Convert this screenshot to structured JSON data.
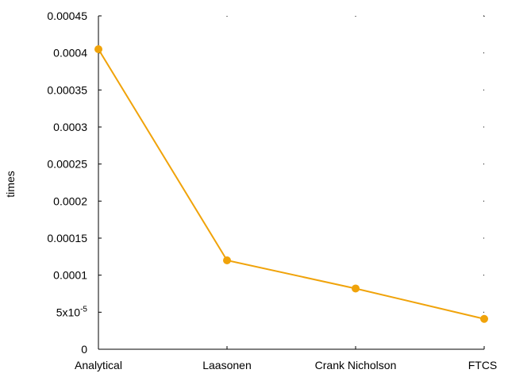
{
  "chart_data": {
    "type": "line",
    "title": "",
    "xlabel": "",
    "ylabel": "times",
    "categories": [
      "Analytical",
      "Laasonen",
      "Crank Nicholson",
      "FTCS"
    ],
    "series": [
      {
        "values": [
          0.000405,
          0.00012,
          8.2e-05,
          4.1e-05
        ],
        "color": "#f0a30a"
      }
    ],
    "ylim": [
      0,
      0.00045
    ],
    "yticks": [
      {
        "value": 0,
        "label": "0"
      },
      {
        "value": 5e-05,
        "label": "5x10",
        "exp": "-5"
      },
      {
        "value": 0.0001,
        "label": "0.0001"
      },
      {
        "value": 0.00015,
        "label": "0.00015"
      },
      {
        "value": 0.0002,
        "label": "0.0002"
      },
      {
        "value": 0.00025,
        "label": "0.00025"
      },
      {
        "value": 0.0003,
        "label": "0.0003"
      },
      {
        "value": 0.00035,
        "label": "0.00035"
      },
      {
        "value": 0.0004,
        "label": "0.0004"
      },
      {
        "value": 0.00045,
        "label": "0.00045"
      }
    ],
    "grid": false
  }
}
